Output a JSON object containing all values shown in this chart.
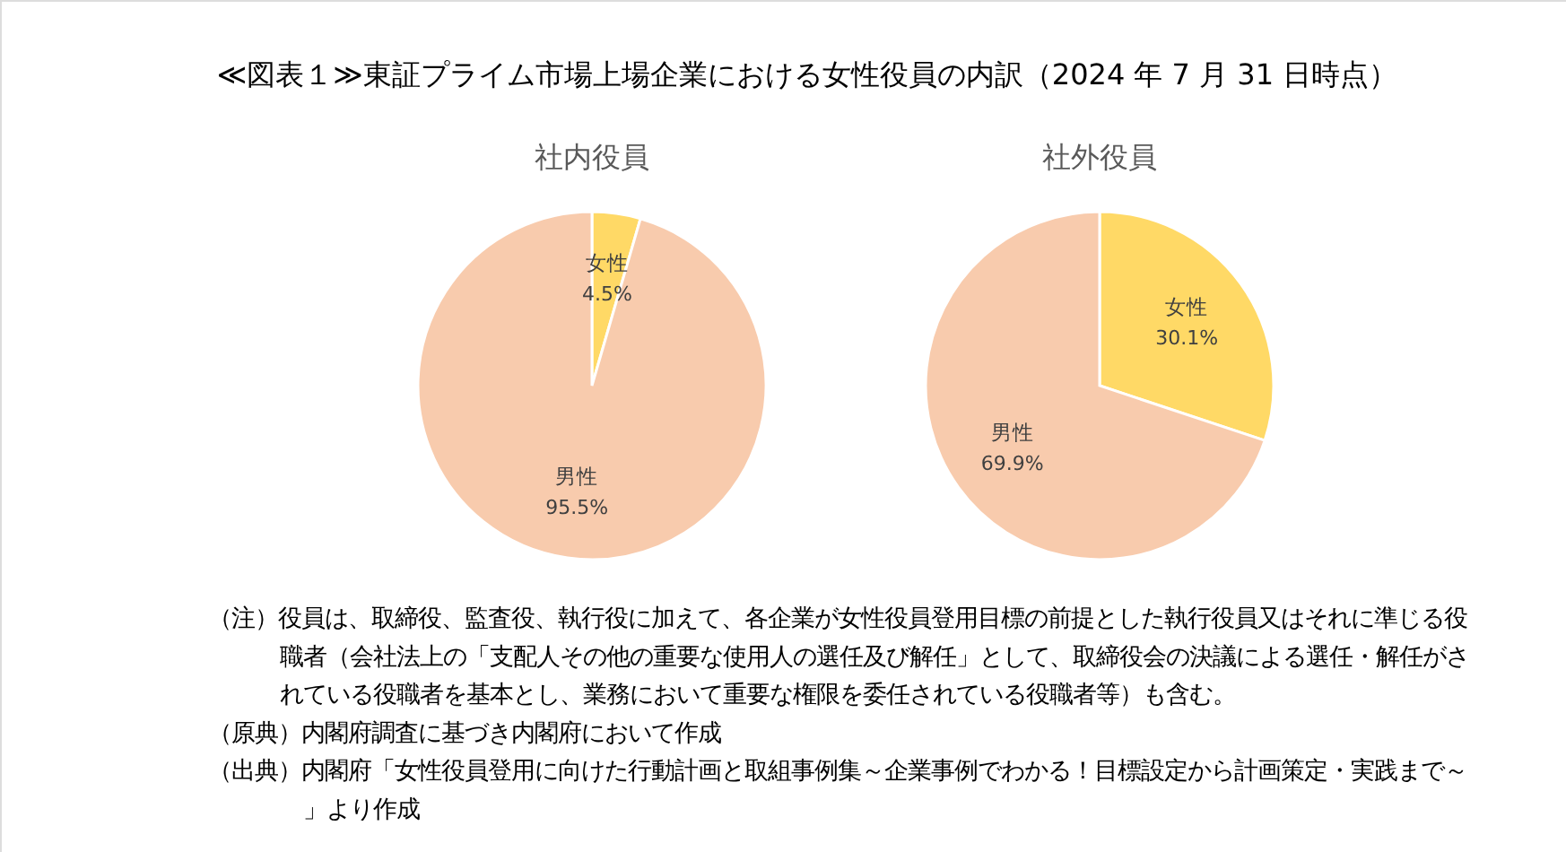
{
  "chart_data": [
    {
      "type": "other",
      "title": "≪図表１≫東証プライム市場上場企業における女性役員の内訳（2024 年 7 月 31 日時点）"
    },
    {
      "type": "pie",
      "title": "社内役員",
      "categories": [
        "女性",
        "男性"
      ],
      "values": [
        4.5,
        95.5
      ],
      "colors": [
        "#ffd966",
        "#f8cbad"
      ],
      "value_labels": [
        "4.5%",
        "95.5%"
      ]
    },
    {
      "type": "pie",
      "title": "社外役員",
      "categories": [
        "女性",
        "男性"
      ],
      "values": [
        30.1,
        69.9
      ],
      "colors": [
        "#ffd966",
        "#f8cbad"
      ],
      "value_labels": [
        "30.1%",
        "69.9%"
      ]
    },
    {
      "type": "other",
      "annotations": [
        "（注）役員は、取締役、監査役、執行役に加えて、各企業が女性役員登用目標の前提とした執行役員又はそれに準じる役職者（会社法上の「支配人その他の重要な使用人の選任及び解任」として、取締役会の決議による選任・解任がされている役職者を基本とし、業務において重要な権限を委任されている役職者等）も含む。",
        "（原典）内閣府調査に基づき内閣府において作成",
        "（出典）内閣府「女性役員登用に向けた行動計画と取組事例集～企業事例でわかる！目標設定から計画策定・実践まで～」より作成"
      ]
    }
  ]
}
